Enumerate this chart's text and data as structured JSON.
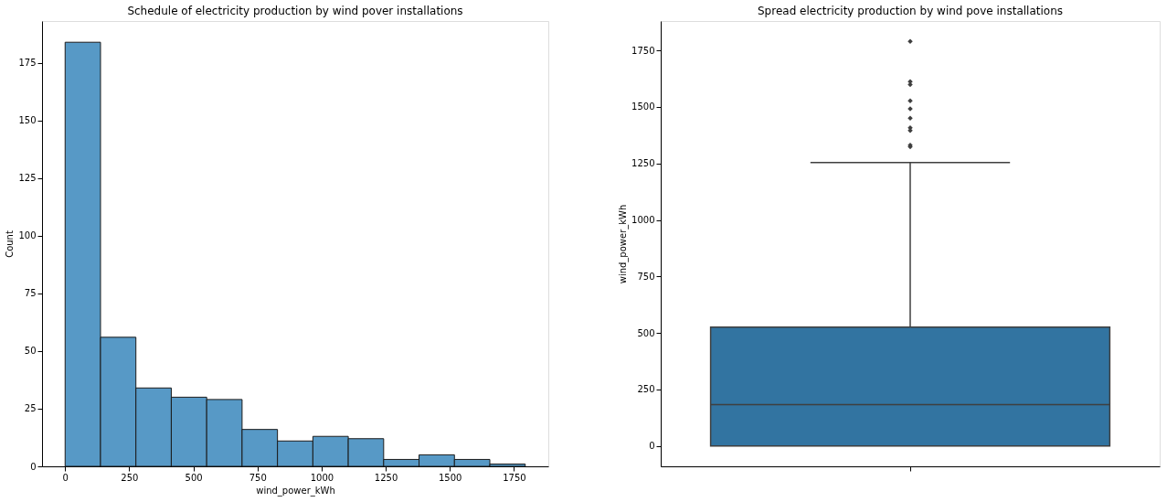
{
  "chart_data": [
    {
      "type": "histogram",
      "title": "Schedule of electricity production by wind pover installations",
      "xlabel": "wind_power_kWh",
      "ylabel": "Count",
      "color": "#5799c6",
      "bins": [
        0,
        138,
        276,
        414,
        552,
        690,
        828,
        966,
        1104,
        1242,
        1380,
        1518,
        1656,
        1794
      ],
      "values": [
        184,
        56,
        34,
        30,
        29,
        16,
        11,
        13,
        12,
        3,
        5,
        3,
        1
      ],
      "xlim": [
        -90,
        1884
      ],
      "xticks": [
        0,
        250,
        500,
        750,
        1000,
        1250,
        1500,
        1750
      ],
      "ylim": [
        0,
        193.2
      ],
      "yticks": [
        0,
        25,
        50,
        75,
        100,
        125,
        150,
        175
      ],
      "grid": false
    },
    {
      "type": "box",
      "title": "Spread electricity production by wind pove installations",
      "ylabel": "wind_power_kWh",
      "color": "#3274a1",
      "categories": [
        null
      ],
      "boxes": [
        {
          "low": 0,
          "q1": 0,
          "median": 183,
          "q3": 526,
          "high": 1254,
          "outliers": [
            1790,
            1612,
            1599,
            1527,
            1492,
            1450,
            1408,
            1396,
            1331,
            1324
          ]
        }
      ],
      "ylim": [
        -90,
        1880
      ],
      "yticks": [
        0,
        250,
        500,
        750,
        1000,
        1250,
        1500,
        1750
      ],
      "grid": false
    }
  ]
}
